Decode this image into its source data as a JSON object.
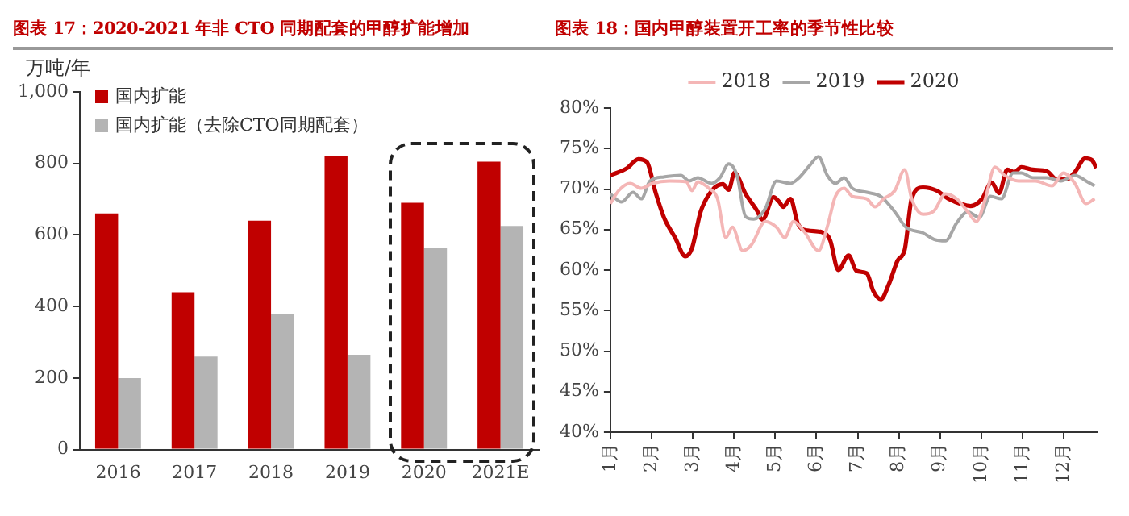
{
  "chart_data": [
    {
      "type": "bar",
      "title": "图表 17：2020-2021 年非 CTO 同期配套的甲醇扩能增加",
      "ylabel": "万吨/年",
      "categories": [
        "2016",
        "2017",
        "2018",
        "2019",
        "2020",
        "2021E"
      ],
      "series": [
        {
          "name": "国内扩能",
          "color": "#c00000",
          "values": [
            660,
            440,
            640,
            820,
            690,
            805
          ]
        },
        {
          "name": "国内扩能（去除CTO同期配套）",
          "color": "#b4b4b4",
          "values": [
            200,
            260,
            380,
            265,
            565,
            625
          ]
        }
      ],
      "ylim": [
        0,
        1000
      ],
      "yticks": [
        0,
        200,
        400,
        600,
        800,
        {
          "value": 1000,
          "label": "1,000"
        }
      ],
      "grid": false,
      "legend": "top left"
    },
    {
      "type": "line",
      "title": "图表 18：国内甲醇装置开工率的季节性比较",
      "xlim": [
        1,
        12.8
      ],
      "xticks": [
        {
          "value": 1,
          "label": "1月"
        },
        {
          "value": 2,
          "label": "2月"
        },
        {
          "value": 3,
          "label": "3月"
        },
        {
          "value": 4,
          "label": "4月"
        },
        {
          "value": 5,
          "label": "5月"
        },
        {
          "value": 6,
          "label": "6月"
        },
        {
          "value": 7,
          "label": "7月"
        },
        {
          "value": 8,
          "label": "8月"
        },
        {
          "value": 9,
          "label": "9月"
        },
        {
          "value": 10,
          "label": "10月"
        },
        {
          "value": 11,
          "label": "11月"
        },
        {
          "value": 12,
          "label": "12月"
        }
      ],
      "ylim": [
        40,
        80
      ],
      "yticks": [
        {
          "value": 40,
          "label": "40%"
        },
        {
          "value": 45,
          "label": "45%"
        },
        {
          "value": 50,
          "label": "50%"
        },
        {
          "value": 55,
          "label": "55%"
        },
        {
          "value": 60,
          "label": "60%"
        },
        {
          "value": 65,
          "label": "65%"
        },
        {
          "value": 70,
          "label": "70%"
        },
        {
          "value": 75,
          "label": "75%"
        },
        {
          "value": 80,
          "label": "80%"
        }
      ],
      "grid": false,
      "legend": "top",
      "marker": "none",
      "line_style": "solid",
      "series": [
        {
          "name": "2018",
          "color": "#f4b6b6",
          "x": [
            1.0,
            1.2,
            1.48,
            1.75,
            2.02,
            2.43,
            2.84,
            2.98,
            3.12,
            3.39,
            3.6,
            3.8,
            3.96,
            4.21,
            4.42,
            4.76,
            5.03,
            5.23,
            5.44,
            5.71,
            6.05,
            6.26,
            6.46,
            6.67,
            6.87,
            7.22,
            7.42,
            7.63,
            7.9,
            8.14,
            8.31,
            8.58,
            8.85,
            9.13,
            9.4,
            9.67,
            9.88,
            10.08,
            10.33,
            10.56,
            10.9,
            11.31,
            11.72,
            11.99,
            12.27,
            12.54,
            12.75
          ],
          "values": [
            68.2,
            69.8,
            70.7,
            70.1,
            70.7,
            71,
            70.9,
            69.8,
            70.9,
            70.1,
            68.8,
            64,
            65.3,
            62.4,
            63.1,
            66,
            65.3,
            64,
            66,
            64.7,
            62.4,
            65.3,
            69.1,
            70.1,
            69.1,
            68.8,
            67.8,
            68.8,
            69.8,
            72.4,
            68.8,
            66.9,
            67.3,
            69.4,
            68.8,
            67.2,
            66,
            68.5,
            72.7,
            71.7,
            71,
            71,
            70.4,
            72,
            70.7,
            68.2,
            68.8
          ]
        },
        {
          "name": "2019",
          "color": "#a6a6a6",
          "x": [
            1.0,
            1.27,
            1.55,
            1.75,
            1.96,
            2.3,
            2.71,
            2.91,
            3.12,
            3.46,
            3.66,
            3.87,
            4.07,
            4.28,
            4.48,
            4.76,
            5.03,
            5.37,
            5.58,
            5.85,
            6.05,
            6.26,
            6.46,
            6.67,
            6.87,
            7.22,
            7.56,
            7.9,
            8.17,
            8.58,
            8.85,
            9.13,
            9.4,
            9.67,
            9.95,
            10.22,
            10.49,
            10.77,
            10.97,
            11.25,
            11.59,
            11.93,
            12.27,
            12.54,
            12.75
          ],
          "values": [
            69.4,
            68.4,
            69.6,
            68.8,
            71,
            71.5,
            71.7,
            71,
            71.4,
            70.7,
            71.4,
            73.1,
            71.7,
            66.6,
            66.3,
            67.6,
            71,
            70.7,
            71.4,
            73,
            74,
            71.7,
            70.7,
            71.4,
            70.1,
            69.6,
            69.1,
            67.2,
            65.3,
            64.6,
            63.8,
            63.6,
            65.8,
            67.2,
            66.5,
            69.1,
            68.8,
            72,
            72,
            71.4,
            71.4,
            71,
            71.7,
            71,
            70.4
          ]
        },
        {
          "name": "2020",
          "color": "#c00000",
          "x": [
            1.0,
            1.41,
            1.68,
            1.89,
            2.09,
            2.3,
            2.57,
            2.82,
            2.98,
            3.19,
            3.46,
            3.73,
            3.87,
            4.01,
            4.28,
            4.55,
            4.69,
            4.96,
            5.1,
            5.19,
            5.37,
            5.55,
            5.78,
            6.12,
            6.33,
            6.53,
            6.78,
            6.97,
            7.22,
            7.38,
            7.56,
            7.76,
            7.97,
            8.14,
            8.31,
            8.58,
            8.92,
            9.2,
            9.54,
            9.74,
            10.02,
            10.25,
            10.43,
            10.63,
            10.8,
            10.97,
            11.25,
            11.59,
            11.83,
            12.07,
            12.27,
            12.52,
            12.68,
            12.79
          ],
          "values": [
            71.7,
            72.6,
            73.7,
            73.3,
            69.7,
            66.5,
            64,
            61.7,
            62.7,
            67.2,
            69.8,
            70.6,
            69.9,
            72,
            69.4,
            67.4,
            66.2,
            69,
            68.4,
            67.8,
            68.8,
            65.7,
            64.9,
            64.7,
            63.7,
            60,
            61.8,
            59.9,
            59.6,
            57.4,
            56.4,
            58.3,
            61.2,
            62.5,
            68.8,
            70.2,
            69.8,
            68.8,
            68.1,
            67.9,
            68.8,
            70.8,
            69.5,
            72.4,
            72.1,
            72.7,
            72.4,
            72.2,
            71.2,
            71.2,
            72.1,
            73.8,
            73.6,
            72.6
          ]
        }
      ]
    }
  ]
}
